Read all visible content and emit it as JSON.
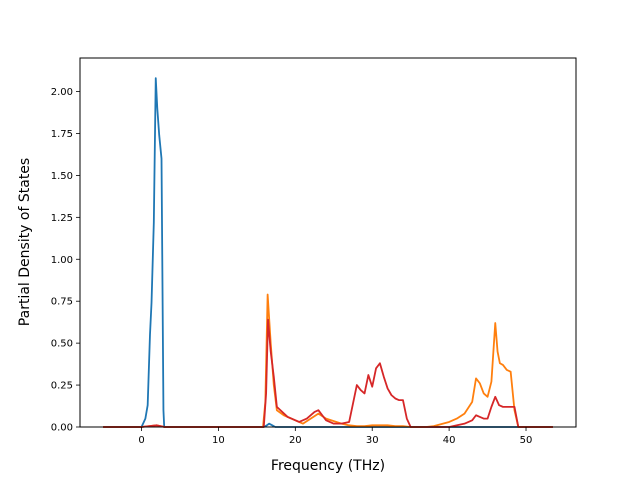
{
  "chart_data": {
    "type": "line",
    "title": "",
    "xlabel": "Frequency (THz)",
    "ylabel": "Partial Density of States",
    "xlim": [
      -8.0,
      56.5
    ],
    "ylim": [
      0,
      2.2
    ],
    "xticks": [
      0,
      10,
      20,
      30,
      40,
      50
    ],
    "yticks": [
      0.0,
      0.25,
      0.5,
      0.75,
      1.0,
      1.25,
      1.5,
      1.75,
      2.0
    ],
    "xtick_labels": [
      "0",
      "10",
      "20",
      "30",
      "40",
      "50"
    ],
    "ytick_labels": [
      "0.00",
      "0.25",
      "0.50",
      "0.75",
      "1.00",
      "1.25",
      "1.50",
      "1.75",
      "2.00"
    ],
    "grid": false,
    "legend": "none",
    "series": [
      {
        "color": "#1f77b4",
        "x": [
          -5,
          0,
          0.5,
          0.8,
          1.1,
          1.3,
          1.6,
          1.85,
          2.05,
          2.3,
          2.6,
          2.85,
          2.95,
          3.1,
          15.9,
          16.3,
          16.6,
          17.0,
          17.4,
          53.5
        ],
        "y": [
          0,
          0,
          0.05,
          0.13,
          0.55,
          0.74,
          1.22,
          2.08,
          1.9,
          1.74,
          1.6,
          0.1,
          0,
          0,
          0,
          0.01,
          0.02,
          0.01,
          0,
          0
        ]
      },
      {
        "color": "#ff7f0e",
        "x": [
          -5,
          0,
          1,
          2,
          3,
          15.8,
          16.1,
          16.4,
          16.8,
          17.2,
          17.6,
          18.5,
          20,
          21,
          22,
          23,
          24,
          26,
          27,
          28,
          29,
          30,
          31,
          32,
          33,
          34,
          35,
          37,
          38,
          40,
          41,
          42,
          43,
          43.5,
          44,
          44.5,
          45,
          45.5,
          46,
          46.3,
          46.6,
          47,
          47.5,
          48,
          48.5,
          49,
          53.5
        ],
        "y": [
          0,
          0,
          0.005,
          0.01,
          0,
          0,
          0.15,
          0.79,
          0.5,
          0.25,
          0.1,
          0.07,
          0.04,
          0.02,
          0.05,
          0.08,
          0.05,
          0.02,
          0.01,
          0.005,
          0.005,
          0.01,
          0.01,
          0.01,
          0.005,
          0.005,
          0,
          0,
          0.005,
          0.03,
          0.05,
          0.08,
          0.15,
          0.29,
          0.26,
          0.2,
          0.18,
          0.27,
          0.62,
          0.45,
          0.38,
          0.37,
          0.34,
          0.33,
          0.1,
          0,
          0
        ]
      },
      {
        "color": "#d62728",
        "x": [
          -5,
          0,
          1,
          2,
          3,
          15.9,
          16.2,
          16.45,
          16.8,
          17.2,
          17.6,
          19,
          20.5,
          21.5,
          22.5,
          23,
          23.5,
          24,
          25,
          26,
          27,
          27.5,
          28,
          28.5,
          29,
          29.5,
          30,
          30.5,
          31,
          31.5,
          32,
          32.5,
          33,
          33.5,
          34,
          34.5,
          35,
          38,
          40,
          42,
          43,
          43.5,
          44,
          44.5,
          45,
          45.5,
          46,
          46.5,
          47,
          48,
          48.5,
          49,
          53.5
        ],
        "y": [
          0,
          0,
          0.005,
          0.01,
          0,
          0,
          0.2,
          0.64,
          0.45,
          0.3,
          0.12,
          0.06,
          0.03,
          0.05,
          0.09,
          0.1,
          0.07,
          0.04,
          0.02,
          0.02,
          0.03,
          0.14,
          0.25,
          0.22,
          0.2,
          0.31,
          0.24,
          0.35,
          0.38,
          0.3,
          0.23,
          0.19,
          0.17,
          0.16,
          0.16,
          0.05,
          0,
          0,
          0,
          0.02,
          0.04,
          0.07,
          0.06,
          0.05,
          0.05,
          0.12,
          0.18,
          0.13,
          0.12,
          0.12,
          0.12,
          0,
          0
        ]
      }
    ]
  }
}
